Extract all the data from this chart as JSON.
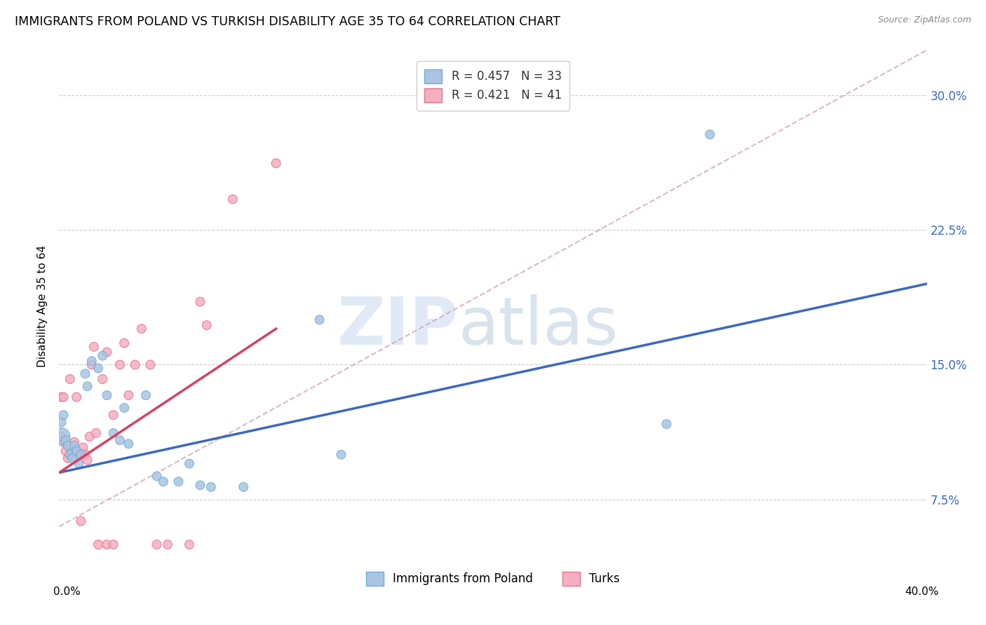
{
  "title": "IMMIGRANTS FROM POLAND VS TURKISH DISABILITY AGE 35 TO 64 CORRELATION CHART",
  "source": "Source: ZipAtlas.com",
  "ylabel": "Disability Age 35 to 64",
  "ytick_labels": [
    "7.5%",
    "15.0%",
    "22.5%",
    "30.0%"
  ],
  "ytick_values": [
    0.075,
    0.15,
    0.225,
    0.3
  ],
  "xlim": [
    0.0,
    0.4
  ],
  "ylim": [
    0.04,
    0.325
  ],
  "poland_color": "#aac4e2",
  "turk_color": "#f5afc0",
  "poland_edge": "#6aaed6",
  "turk_edge": "#e87090",
  "poland_line_color": "#3b68c0",
  "turk_line_color": "#d94060",
  "ref_line_color": "#d0a0b8",
  "watermark_zip": "ZIP",
  "watermark_atlas": "atlas",
  "poland_line_x": [
    0.0,
    0.4
  ],
  "poland_line_y": [
    0.09,
    0.195
  ],
  "turk_line_x": [
    0.0,
    0.1
  ],
  "turk_line_y": [
    0.09,
    0.17
  ],
  "ref_line_x": [
    0.0,
    0.4
  ],
  "ref_line_y": [
    0.06,
    0.325
  ],
  "poland_points": [
    [
      0.001,
      0.11
    ],
    [
      0.001,
      0.118
    ],
    [
      0.002,
      0.122
    ],
    [
      0.003,
      0.108
    ],
    [
      0.004,
      0.105
    ],
    [
      0.005,
      0.1
    ],
    [
      0.006,
      0.098
    ],
    [
      0.007,
      0.105
    ],
    [
      0.008,
      0.102
    ],
    [
      0.009,
      0.095
    ],
    [
      0.01,
      0.1
    ],
    [
      0.012,
      0.145
    ],
    [
      0.013,
      0.138
    ],
    [
      0.015,
      0.152
    ],
    [
      0.018,
      0.148
    ],
    [
      0.02,
      0.155
    ],
    [
      0.022,
      0.133
    ],
    [
      0.025,
      0.112
    ],
    [
      0.028,
      0.108
    ],
    [
      0.03,
      0.126
    ],
    [
      0.032,
      0.106
    ],
    [
      0.04,
      0.133
    ],
    [
      0.045,
      0.088
    ],
    [
      0.048,
      0.085
    ],
    [
      0.055,
      0.085
    ],
    [
      0.06,
      0.095
    ],
    [
      0.065,
      0.083
    ],
    [
      0.07,
      0.082
    ],
    [
      0.085,
      0.082
    ],
    [
      0.12,
      0.175
    ],
    [
      0.13,
      0.1
    ],
    [
      0.28,
      0.117
    ],
    [
      0.3,
      0.278
    ]
  ],
  "turk_points": [
    [
      0.001,
      0.11
    ],
    [
      0.001,
      0.132
    ],
    [
      0.002,
      0.132
    ],
    [
      0.002,
      0.107
    ],
    [
      0.003,
      0.102
    ],
    [
      0.004,
      0.098
    ],
    [
      0.005,
      0.1
    ],
    [
      0.005,
      0.142
    ],
    [
      0.006,
      0.102
    ],
    [
      0.007,
      0.107
    ],
    [
      0.008,
      0.098
    ],
    [
      0.008,
      0.132
    ],
    [
      0.009,
      0.102
    ],
    [
      0.01,
      0.1
    ],
    [
      0.01,
      0.063
    ],
    [
      0.011,
      0.104
    ],
    [
      0.012,
      0.1
    ],
    [
      0.013,
      0.097
    ],
    [
      0.014,
      0.11
    ],
    [
      0.015,
      0.15
    ],
    [
      0.016,
      0.16
    ],
    [
      0.017,
      0.112
    ],
    [
      0.018,
      0.05
    ],
    [
      0.02,
      0.142
    ],
    [
      0.022,
      0.157
    ],
    [
      0.022,
      0.05
    ],
    [
      0.025,
      0.122
    ],
    [
      0.025,
      0.05
    ],
    [
      0.028,
      0.15
    ],
    [
      0.03,
      0.162
    ],
    [
      0.032,
      0.133
    ],
    [
      0.035,
      0.15
    ],
    [
      0.038,
      0.17
    ],
    [
      0.042,
      0.15
    ],
    [
      0.045,
      0.05
    ],
    [
      0.05,
      0.05
    ],
    [
      0.06,
      0.05
    ],
    [
      0.065,
      0.185
    ],
    [
      0.068,
      0.172
    ],
    [
      0.08,
      0.242
    ],
    [
      0.1,
      0.262
    ]
  ],
  "poland_large_indices": [
    0
  ],
  "poland_large_size": 320,
  "poland_size_base": 85,
  "turk_size_base": 85
}
